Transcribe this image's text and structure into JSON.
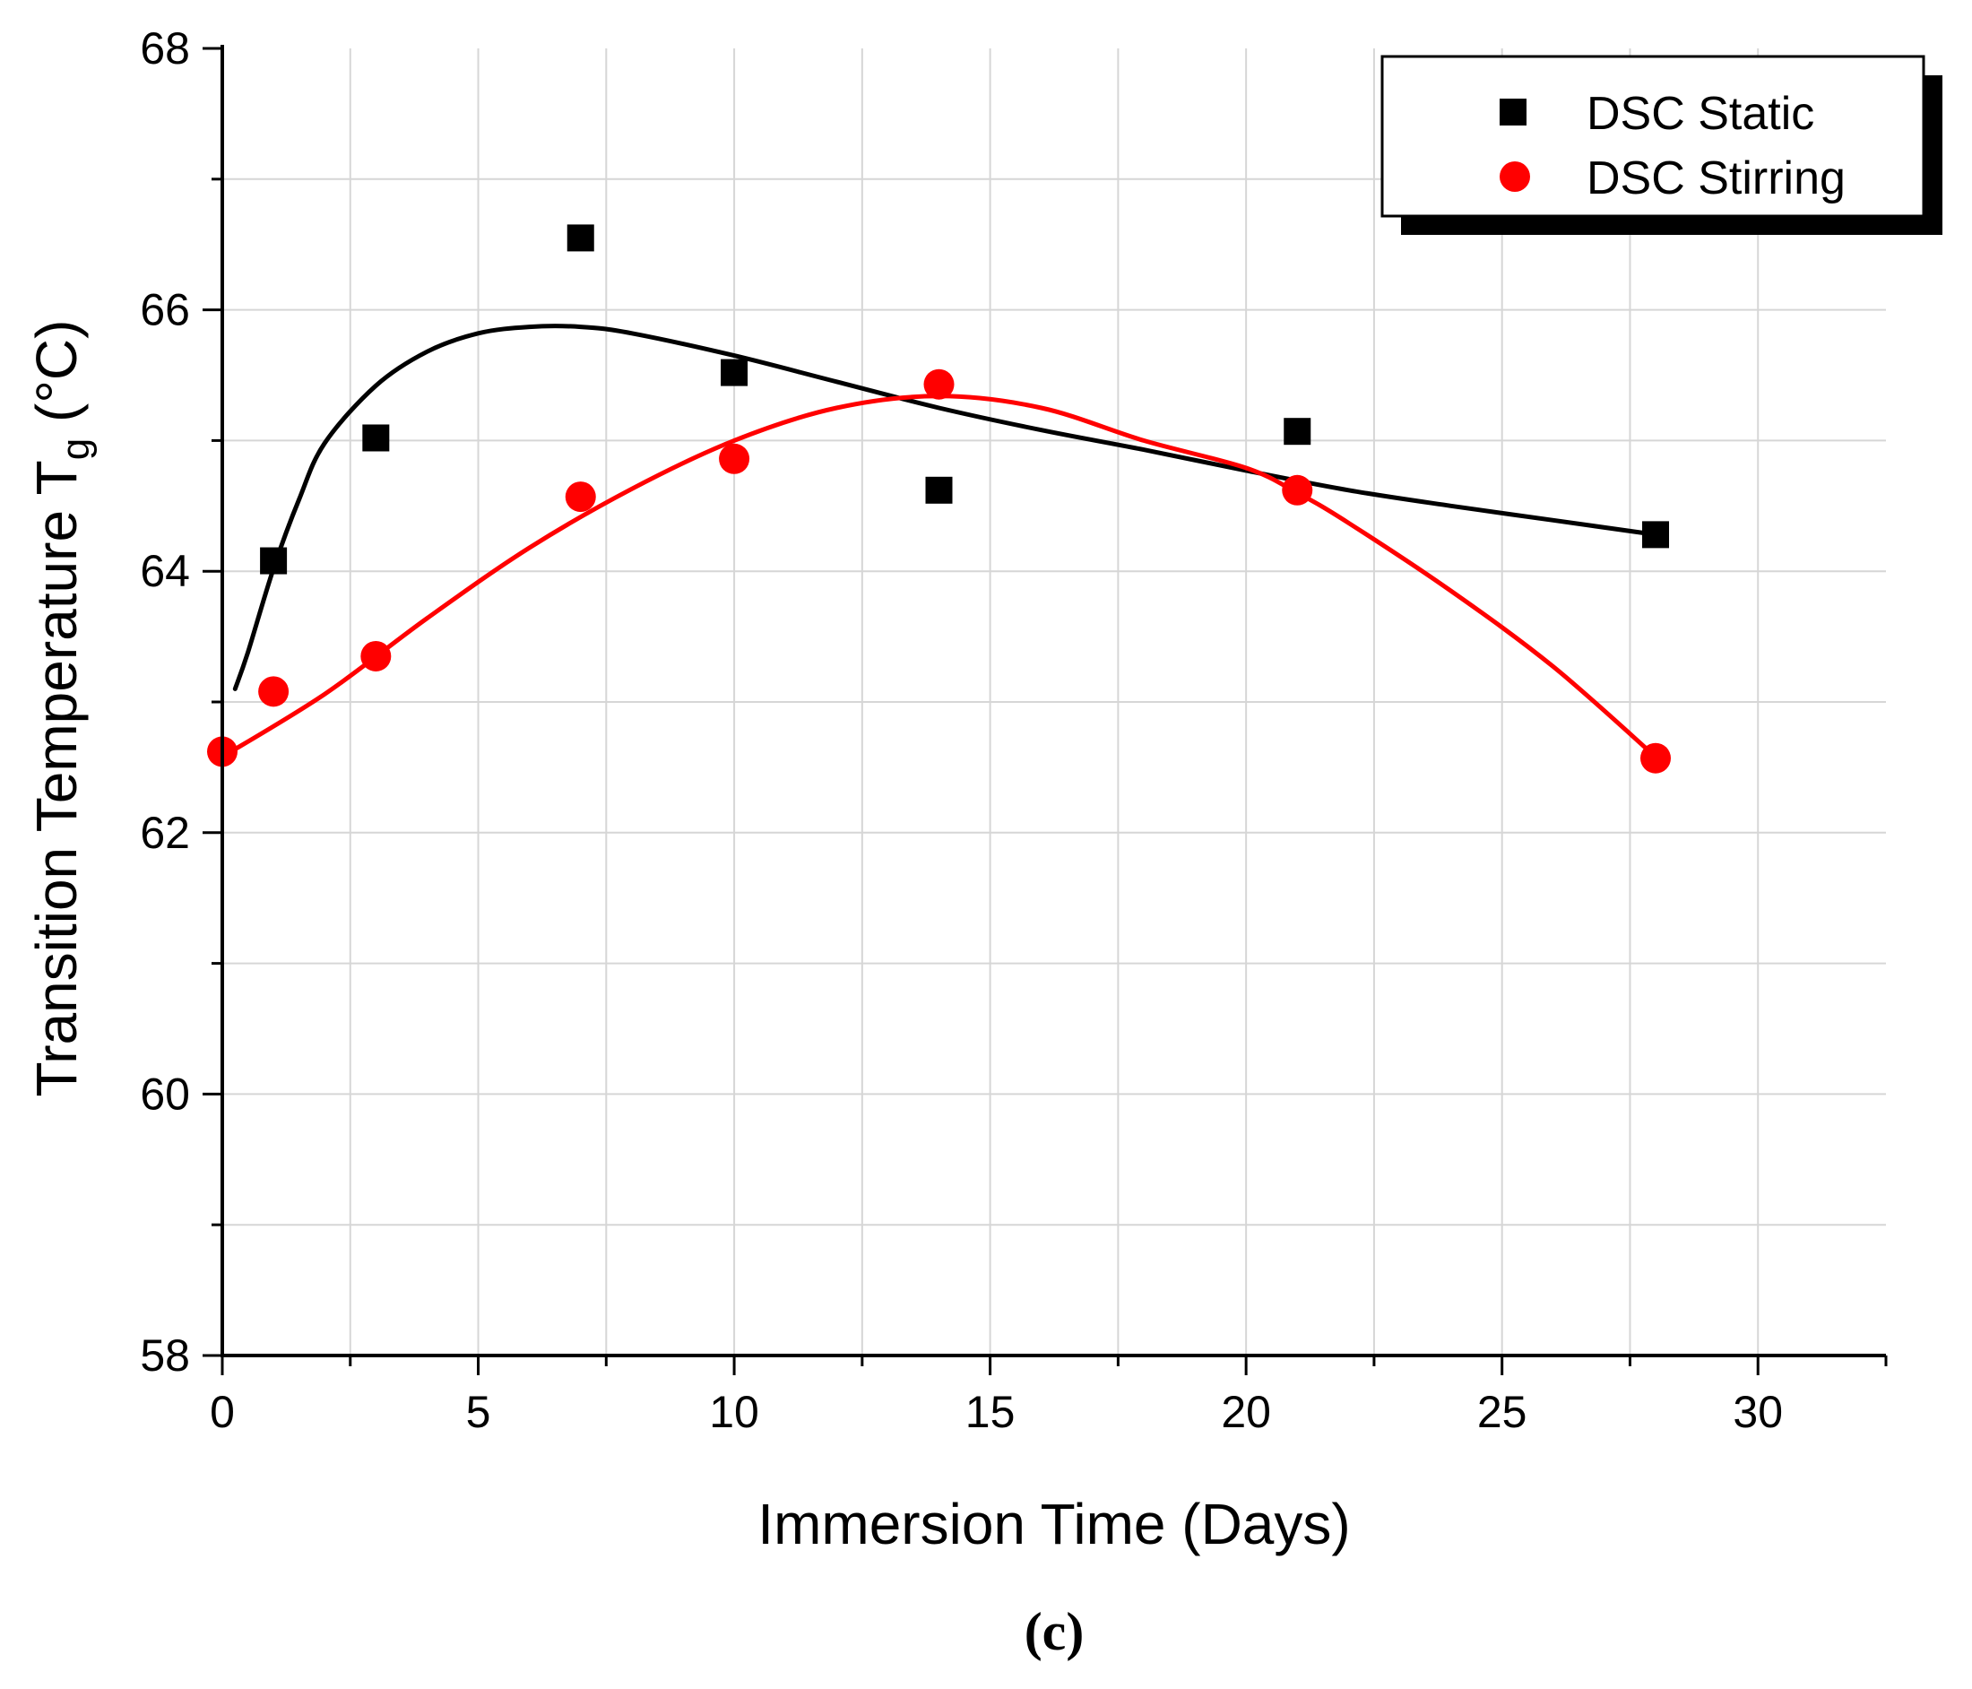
{
  "chart_data": {
    "type": "scatter",
    "title": "",
    "xlabel": "Immersion Time (Days)",
    "ylabel": {
      "main": "Transition Temperature T",
      "subscript": "g",
      "unit": " (°C)"
    },
    "xlim": [
      0,
      32.5
    ],
    "ylim": [
      58,
      68
    ],
    "xticks": [
      0,
      5,
      10,
      15,
      20,
      25,
      30
    ],
    "yticks": [
      58,
      60,
      62,
      64,
      66,
      68
    ],
    "grid": true,
    "legend_position": "top-right",
    "caption": "(c)",
    "series": [
      {
        "name": "DSC Static",
        "marker": "square",
        "color": "#000000",
        "points": [
          [
            1,
            64.08
          ],
          [
            3,
            65.02
          ],
          [
            7,
            66.55
          ],
          [
            10,
            65.52
          ],
          [
            14,
            64.62
          ],
          [
            21,
            65.07
          ],
          [
            28,
            64.28
          ]
        ],
        "fit": [
          [
            0.25,
            63.1
          ],
          [
            0.5,
            63.38
          ],
          [
            1,
            64.02
          ],
          [
            1.5,
            64.55
          ],
          [
            2,
            64.98
          ],
          [
            3,
            65.42
          ],
          [
            4,
            65.68
          ],
          [
            5,
            65.82
          ],
          [
            6,
            65.87
          ],
          [
            7,
            65.87
          ],
          [
            8,
            65.82
          ],
          [
            10,
            65.65
          ],
          [
            12,
            65.45
          ],
          [
            14,
            65.25
          ],
          [
            16,
            65.08
          ],
          [
            18,
            64.93
          ],
          [
            20,
            64.77
          ],
          [
            22,
            64.62
          ],
          [
            24,
            64.5
          ],
          [
            26,
            64.39
          ],
          [
            28,
            64.28
          ]
        ]
      },
      {
        "name": "DSC Stirring",
        "marker": "circle",
        "color": "#ff0000",
        "points": [
          [
            0,
            62.62
          ],
          [
            1,
            63.08
          ],
          [
            3,
            63.35
          ],
          [
            7,
            64.57
          ],
          [
            10,
            64.86
          ],
          [
            14,
            65.43
          ],
          [
            21,
            64.62
          ],
          [
            28,
            62.57
          ]
        ],
        "fit": [
          [
            0,
            62.58
          ],
          [
            2,
            63.06
          ],
          [
            4,
            63.64
          ],
          [
            6,
            64.18
          ],
          [
            8,
            64.63
          ],
          [
            10,
            65.0
          ],
          [
            12,
            65.25
          ],
          [
            14,
            65.34
          ],
          [
            16,
            65.25
          ],
          [
            18,
            65.0
          ],
          [
            20,
            64.79
          ],
          [
            21,
            64.6
          ],
          [
            22,
            64.37
          ],
          [
            24,
            63.85
          ],
          [
            26,
            63.27
          ],
          [
            28,
            62.58
          ]
        ]
      }
    ]
  }
}
